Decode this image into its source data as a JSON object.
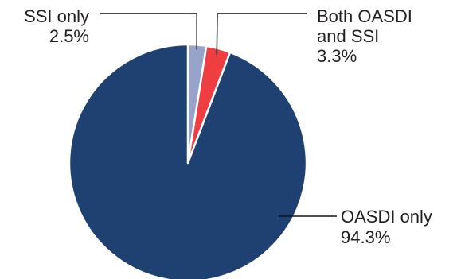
{
  "chart_data": {
    "type": "pie",
    "title": "",
    "start_angle_deg": 0,
    "direction": "clockwise",
    "legend": "none",
    "slices": [
      {
        "label_lines": [
          "SSI only"
        ],
        "value": 2.5,
        "value_label": "2.5%",
        "color": "#97a3c9"
      },
      {
        "label_lines": [
          "Both OASDI",
          "and SSI"
        ],
        "value": 3.3,
        "value_label": "3.3%",
        "color": "#ef3e42"
      },
      {
        "label_lines": [
          "OASDI only"
        ],
        "value": 94.3,
        "value_label": "94.3%",
        "color": "#1f4171"
      }
    ]
  }
}
